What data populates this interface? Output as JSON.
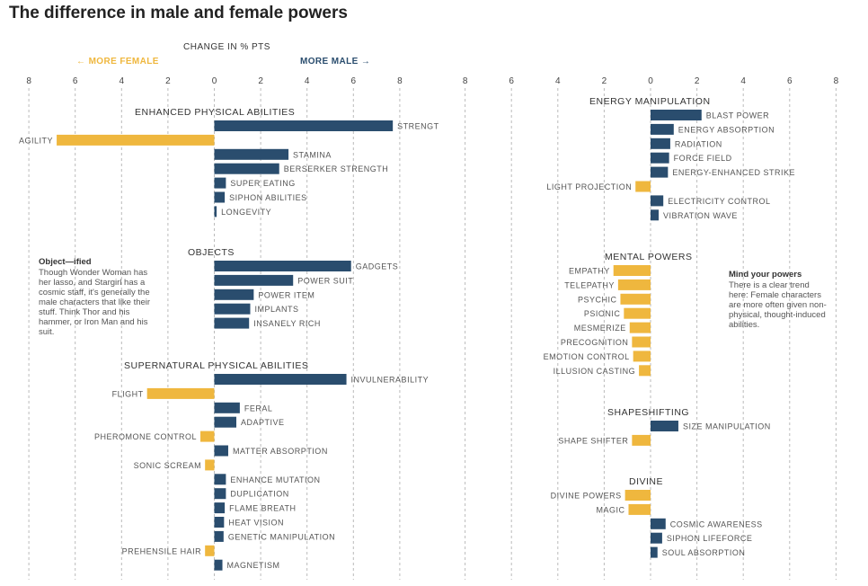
{
  "title": "The difference in male and female powers",
  "notes": [
    {
      "title": "Object—ified",
      "body": "Though Wonder Woman has her lasso, and Stargirl has a cosmic staff, it's generally the male characters that like their stuff. Think Thor and his hammer, or Iron Man and his suit."
    },
    {
      "title": "Mind your powers",
      "body": "There is a clear trend here: Female characters are more often given non-physical, thought-induced abilities."
    }
  ],
  "chart_data": {
    "type": "bar",
    "orientation": "horizontal-diverging",
    "axis_title": "CHANGE IN % PTS",
    "left_direction_label": "← MORE FEMALE",
    "right_direction_label": "MORE MALE →",
    "tick_labels": [
      "8",
      "6",
      "4",
      "2",
      "0",
      "2",
      "4",
      "6",
      "8"
    ],
    "xlim": [
      -8,
      8
    ],
    "value_sign": "positive = more male, negative = more female",
    "colors": {
      "male": "#2a4d6e",
      "female": "#efb73e"
    },
    "panels": [
      {
        "name": "left",
        "groups": [
          {
            "name": "ENHANCED PHYSICAL ABILITIES",
            "items": [
              {
                "label": "STRENGT",
                "value": 7.7
              },
              {
                "label": "AGILITY",
                "value": -6.8
              },
              {
                "label": "STAMINA",
                "value": 3.2
              },
              {
                "label": "BERSERKER STRENGTH",
                "value": 2.8
              },
              {
                "label": "SUPER EATING",
                "value": 0.5
              },
              {
                "label": "SIPHON ABILITIES",
                "value": 0.45
              },
              {
                "label": "LONGEVITY",
                "value": 0.1
              }
            ]
          },
          {
            "name": "OBJECTS",
            "items": [
              {
                "label": "GADGETS",
                "value": 5.9
              },
              {
                "label": "POWER SUIT",
                "value": 3.4
              },
              {
                "label": "POWER ITEM",
                "value": 1.7
              },
              {
                "label": "IMPLANTS",
                "value": 1.55
              },
              {
                "label": "INSANELY RICH",
                "value": 1.5
              }
            ]
          },
          {
            "name": "SUPERNATURAL PHYSICAL ABILITIES",
            "items": [
              {
                "label": "INVULNERABILITY",
                "value": 5.7
              },
              {
                "label": "FLIGHT",
                "value": -2.9
              },
              {
                "label": "FERAL",
                "value": 1.1
              },
              {
                "label": "ADAPTIVE",
                "value": 0.95
              },
              {
                "label": "PHEROMONE CONTROL",
                "value": -0.6
              },
              {
                "label": "MATTER ABSORPTION",
                "value": 0.6
              },
              {
                "label": "SONIC SCREAM",
                "value": -0.4
              },
              {
                "label": "ENHANCE MUTATION",
                "value": 0.5
              },
              {
                "label": "DUPLICATION",
                "value": 0.5
              },
              {
                "label": "FLAME BREATH",
                "value": 0.45
              },
              {
                "label": "HEAT VISION",
                "value": 0.42
              },
              {
                "label": "GENETIC MANIPULATION",
                "value": 0.4
              },
              {
                "label": "PREHENSILE HAIR",
                "value": -0.4
              },
              {
                "label": "MAGNETISM",
                "value": 0.35
              }
            ]
          }
        ]
      },
      {
        "name": "right",
        "groups": [
          {
            "name": "ENERGY MANIPULATION",
            "items": [
              {
                "label": "BLAST POWER",
                "value": 2.2
              },
              {
                "label": "ENERGY ABSORPTION",
                "value": 1.0
              },
              {
                "label": "RADIATION",
                "value": 0.85
              },
              {
                "label": "FORCE FIELD",
                "value": 0.8
              },
              {
                "label": "ENERGY-ENHANCED STRIKE",
                "value": 0.75
              },
              {
                "label": "LIGHT PROJECTION",
                "value": -0.65
              },
              {
                "label": "ELECTRICITY CONTROL",
                "value": 0.55
              },
              {
                "label": "VIBRATION WAVE",
                "value": 0.35
              }
            ]
          },
          {
            "name": "MENTAL POWERS",
            "items": [
              {
                "label": "EMPATHY",
                "value": -1.6
              },
              {
                "label": "TELEPATHY",
                "value": -1.4
              },
              {
                "label": "PSYCHIC",
                "value": -1.3
              },
              {
                "label": "PSIONIC",
                "value": -1.15
              },
              {
                "label": "MESMERIZE",
                "value": -0.9
              },
              {
                "label": "PRECOGNITION",
                "value": -0.8
              },
              {
                "label": "EMOTION CONTROL",
                "value": -0.75
              },
              {
                "label": "ILLUSION CASTING",
                "value": -0.5
              }
            ]
          },
          {
            "name": "SHAPESHIFTING",
            "items": [
              {
                "label": "SIZE MANIPULATION",
                "value": 1.2
              },
              {
                "label": "SHAPE SHIFTER",
                "value": -0.8
              }
            ]
          },
          {
            "name": "DIVINE",
            "items": [
              {
                "label": "DIVINE POWERS",
                "value": -1.1
              },
              {
                "label": "MAGIC",
                "value": -0.95
              },
              {
                "label": "COSMIC AWARENESS",
                "value": 0.65
              },
              {
                "label": "SIPHON LIFEFORCE",
                "value": 0.5
              },
              {
                "label": "SOUL ABSORPTION",
                "value": 0.3
              }
            ]
          }
        ]
      }
    ]
  }
}
